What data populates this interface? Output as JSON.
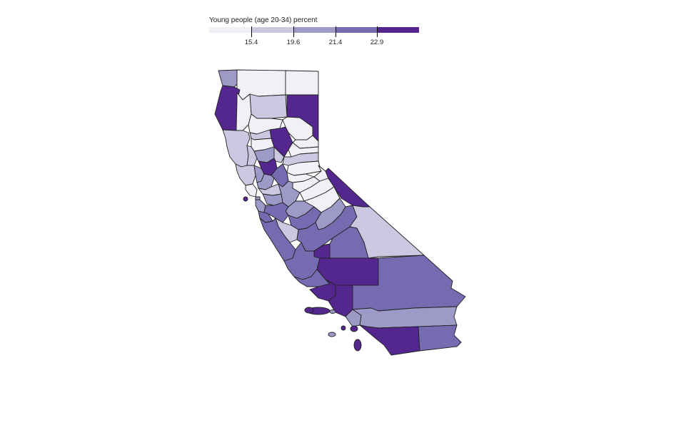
{
  "legend": {
    "title": "Young people (age 20-34) percent",
    "ticks": [
      "15.4",
      "19.6",
      "21.4",
      "22.9"
    ],
    "colors": [
      "#f2f0f7",
      "#cbc9e2",
      "#9e9ac8",
      "#756bb1",
      "#54278f"
    ]
  },
  "map": {
    "region": "California",
    "unit": "county",
    "color_scale": [
      "#f2f0f7",
      "#cbc9e2",
      "#9e9ac8",
      "#756bb1",
      "#54278f"
    ]
  }
}
